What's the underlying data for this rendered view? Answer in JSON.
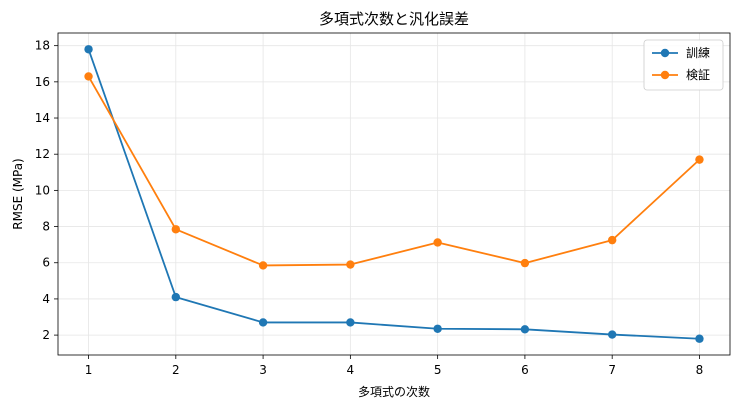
{
  "chart_data": {
    "type": "line",
    "title": "多項式次数と汎化誤差",
    "xlabel": "多項式の次数",
    "ylabel": "RMSE (MPa)",
    "x": [
      1,
      2,
      3,
      4,
      5,
      6,
      7,
      8
    ],
    "xlim": [
      0.65,
      8.35
    ],
    "ylim": [
      0.9,
      18.7
    ],
    "xticks": [
      1,
      2,
      3,
      4,
      5,
      6,
      7,
      8
    ],
    "yticks": [
      2,
      4,
      6,
      8,
      10,
      12,
      14,
      16,
      18
    ],
    "grid": true,
    "legend_position": "top-right",
    "series": [
      {
        "name": "訓練",
        "color": "#1f77b4",
        "values": [
          17.8,
          4.1,
          2.7,
          2.7,
          2.35,
          2.32,
          2.03,
          1.8
        ]
      },
      {
        "name": "検証",
        "color": "#ff7f0e",
        "values": [
          16.3,
          7.85,
          5.85,
          5.9,
          7.12,
          5.98,
          7.25,
          11.7
        ]
      }
    ]
  }
}
